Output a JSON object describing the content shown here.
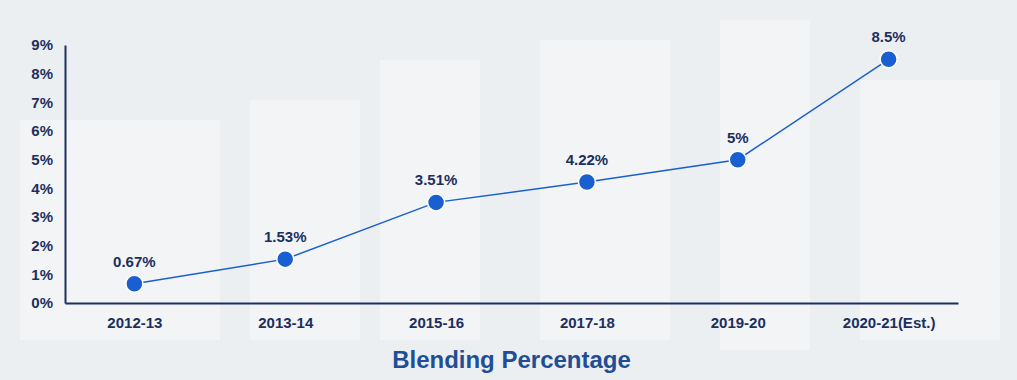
{
  "chart_data": {
    "type": "line",
    "x_label": "Blending Percentage",
    "categories": [
      "2012-13",
      "2013-14",
      "2015-16",
      "2017-18",
      "2019-20",
      "2020-21(Est.)"
    ],
    "values": [
      0.67,
      1.53,
      3.51,
      4.22,
      5,
      8.5
    ],
    "value_labels": [
      "0.67%",
      "1.53%",
      "3.51%",
      "4.22%",
      "5%",
      "8.5%"
    ],
    "ylim": [
      0,
      9
    ],
    "yticks": [
      {
        "value": 0,
        "label": "0%"
      },
      {
        "value": 1,
        "label": "1%"
      },
      {
        "value": 2,
        "label": "2%"
      },
      {
        "value": 3,
        "label": "3%"
      },
      {
        "value": 4,
        "label": "4%"
      },
      {
        "value": 5,
        "label": "5%"
      },
      {
        "value": 6,
        "label": "6%"
      },
      {
        "value": 7,
        "label": "7%"
      },
      {
        "value": 8,
        "label": "8%"
      },
      {
        "value": 9,
        "label": "9%"
      }
    ],
    "color": "#1a5fcf",
    "marker": "circle",
    "data_labels": true,
    "grid": false
  }
}
